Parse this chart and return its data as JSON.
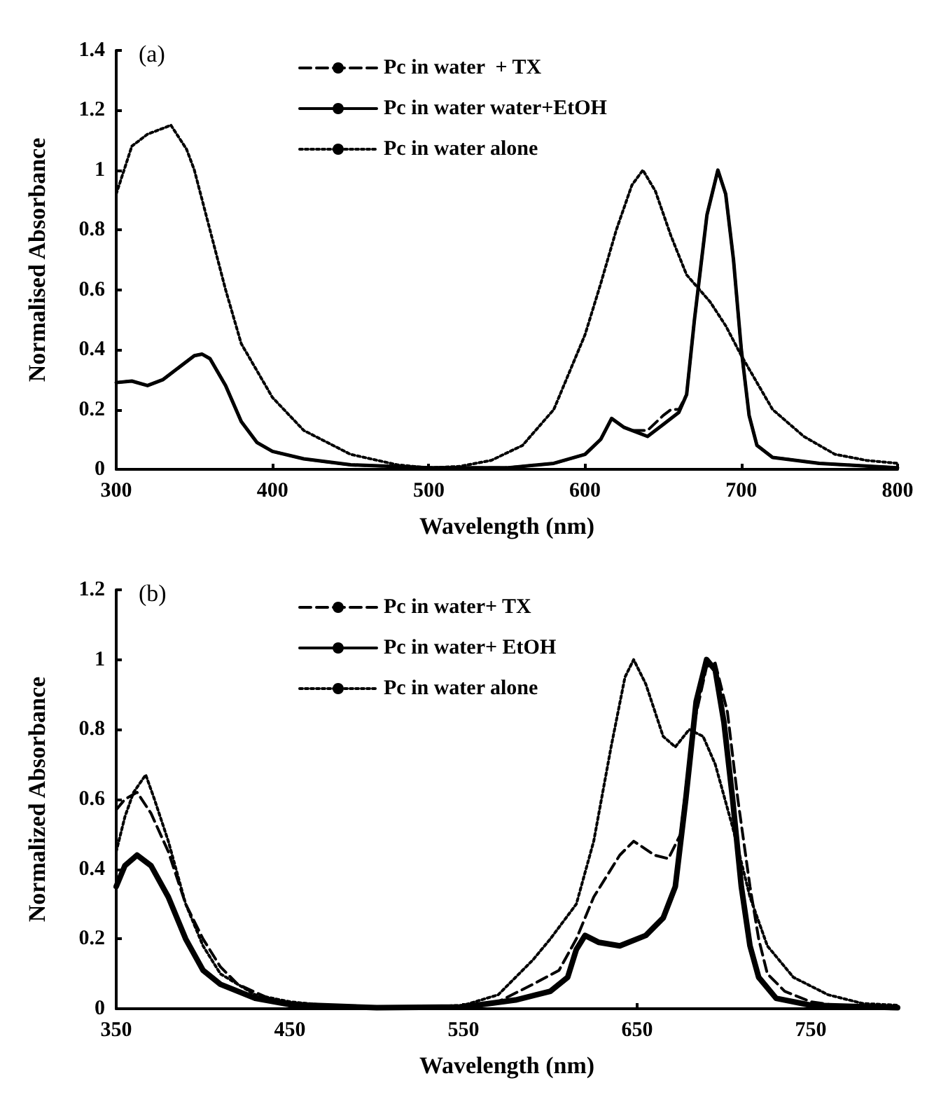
{
  "chart_data": [
    {
      "type": "line",
      "annotations": [
        "(a)"
      ],
      "xlabel": "Wavelength (nm)",
      "ylabel": "Normalised Absorbance",
      "xlim": [
        300,
        800
      ],
      "xticks": [
        300,
        400,
        500,
        600,
        700,
        800
      ],
      "ylim": [
        0,
        1.4
      ],
      "yticks": [
        0,
        0.2,
        0.4,
        0.6,
        0.8,
        1,
        1.2,
        1.4
      ],
      "grid": false,
      "legend": "top",
      "marker": "none",
      "series": [
        {
          "name": "Pc in water  + TX",
          "color": "#000000",
          "line_style": "dashed",
          "x": [
            300,
            310,
            320,
            330,
            340,
            350,
            355,
            360,
            370,
            380,
            390,
            400,
            420,
            450,
            500,
            550,
            580,
            600,
            610,
            617,
            625,
            630,
            640,
            650,
            655,
            660,
            665,
            670,
            678,
            685,
            690,
            695,
            700,
            705,
            710,
            720,
            750,
            800
          ],
          "values": [
            0.29,
            0.295,
            0.28,
            0.3,
            0.34,
            0.38,
            0.385,
            0.37,
            0.28,
            0.16,
            0.09,
            0.06,
            0.035,
            0.015,
            0.005,
            0.005,
            0.02,
            0.05,
            0.1,
            0.17,
            0.14,
            0.13,
            0.13,
            0.18,
            0.2,
            0.2,
            0.25,
            0.5,
            0.85,
            1.0,
            0.92,
            0.7,
            0.4,
            0.18,
            0.08,
            0.04,
            0.02,
            0.005
          ]
        },
        {
          "name": "Pc in water water+EtOH",
          "color": "#000000",
          "line_style": "solid",
          "x": [
            300,
            310,
            320,
            330,
            340,
            350,
            355,
            360,
            370,
            380,
            390,
            400,
            420,
            450,
            500,
            550,
            580,
            600,
            610,
            617,
            625,
            640,
            650,
            660,
            665,
            670,
            678,
            685,
            690,
            695,
            700,
            705,
            710,
            720,
            750,
            800
          ],
          "values": [
            0.29,
            0.295,
            0.28,
            0.3,
            0.34,
            0.38,
            0.385,
            0.37,
            0.28,
            0.16,
            0.09,
            0.06,
            0.035,
            0.015,
            0.005,
            0.005,
            0.02,
            0.05,
            0.1,
            0.17,
            0.14,
            0.11,
            0.15,
            0.19,
            0.25,
            0.5,
            0.85,
            1.0,
            0.92,
            0.7,
            0.4,
            0.18,
            0.08,
            0.04,
            0.02,
            0.005
          ]
        },
        {
          "name": "Pc in water alone",
          "color": "#000000",
          "line_style": "dotted",
          "x": [
            300,
            310,
            320,
            335,
            345,
            350,
            360,
            370,
            380,
            400,
            420,
            450,
            480,
            500,
            520,
            540,
            560,
            580,
            600,
            610,
            620,
            630,
            637,
            645,
            655,
            665,
            680,
            690,
            700,
            710,
            720,
            740,
            760,
            780,
            800
          ],
          "values": [
            0.92,
            1.08,
            1.12,
            1.15,
            1.07,
            1.0,
            0.8,
            0.6,
            0.42,
            0.24,
            0.13,
            0.05,
            0.015,
            0.005,
            0.01,
            0.03,
            0.08,
            0.2,
            0.45,
            0.62,
            0.8,
            0.95,
            1.0,
            0.93,
            0.78,
            0.65,
            0.56,
            0.48,
            0.38,
            0.29,
            0.2,
            0.11,
            0.05,
            0.03,
            0.02
          ]
        }
      ]
    },
    {
      "type": "line",
      "annotations": [
        "(b)"
      ],
      "xlabel": "Wavelength (nm)",
      "ylabel": "Normalized Absorbance",
      "xlim": [
        350,
        800
      ],
      "xticks": [
        350,
        450,
        550,
        650,
        750
      ],
      "ylim": [
        0,
        1.2
      ],
      "yticks": [
        0,
        0.2,
        0.4,
        0.6,
        0.8,
        1,
        1.2
      ],
      "grid": false,
      "legend": "top",
      "marker": "none",
      "series": [
        {
          "name": "Pc in water+ TX",
          "color": "#000000",
          "line_style": "dashed",
          "x": [
            350,
            355,
            362,
            370,
            380,
            390,
            400,
            410,
            420,
            440,
            460,
            500,
            550,
            570,
            590,
            605,
            615,
            625,
            640,
            648,
            660,
            668,
            675,
            682,
            690,
            695,
            702,
            708,
            715,
            720,
            725,
            735,
            750,
            770,
            800
          ],
          "values": [
            0.57,
            0.6,
            0.62,
            0.56,
            0.45,
            0.3,
            0.2,
            0.12,
            0.07,
            0.025,
            0.01,
            0.003,
            0.005,
            0.02,
            0.07,
            0.11,
            0.2,
            0.32,
            0.44,
            0.48,
            0.44,
            0.43,
            0.5,
            0.8,
            0.98,
            0.99,
            0.85,
            0.6,
            0.35,
            0.2,
            0.1,
            0.05,
            0.02,
            0.005,
            0.002
          ]
        },
        {
          "name": "Pc in water+ EtOH",
          "color": "#000000",
          "line_style": "solid",
          "x": [
            350,
            355,
            362,
            370,
            380,
            390,
            400,
            410,
            430,
            450,
            500,
            550,
            580,
            600,
            610,
            615,
            620,
            628,
            640,
            655,
            665,
            672,
            678,
            684,
            690,
            695,
            700,
            705,
            710,
            715,
            720,
            730,
            750,
            800
          ],
          "values": [
            0.35,
            0.41,
            0.44,
            0.41,
            0.32,
            0.2,
            0.11,
            0.07,
            0.03,
            0.012,
            0.003,
            0.005,
            0.025,
            0.05,
            0.09,
            0.17,
            0.21,
            0.19,
            0.18,
            0.21,
            0.26,
            0.35,
            0.6,
            0.88,
            1.0,
            0.97,
            0.82,
            0.6,
            0.35,
            0.18,
            0.09,
            0.03,
            0.01,
            0.003
          ]
        },
        {
          "name": "Pc in water alone",
          "color": "#000000",
          "line_style": "dotted",
          "x": [
            350,
            355,
            360,
            367,
            372,
            380,
            390,
            400,
            410,
            430,
            450,
            480,
            520,
            550,
            570,
            590,
            600,
            615,
            625,
            635,
            643,
            648,
            655,
            665,
            672,
            680,
            688,
            695,
            705,
            715,
            725,
            740,
            760,
            780,
            800
          ],
          "values": [
            0.45,
            0.55,
            0.62,
            0.67,
            0.6,
            0.48,
            0.3,
            0.18,
            0.1,
            0.04,
            0.02,
            0.005,
            0.003,
            0.01,
            0.04,
            0.14,
            0.2,
            0.3,
            0.48,
            0.75,
            0.95,
            1.0,
            0.93,
            0.78,
            0.75,
            0.8,
            0.78,
            0.7,
            0.52,
            0.32,
            0.18,
            0.09,
            0.04,
            0.015,
            0.01
          ]
        }
      ]
    }
  ]
}
